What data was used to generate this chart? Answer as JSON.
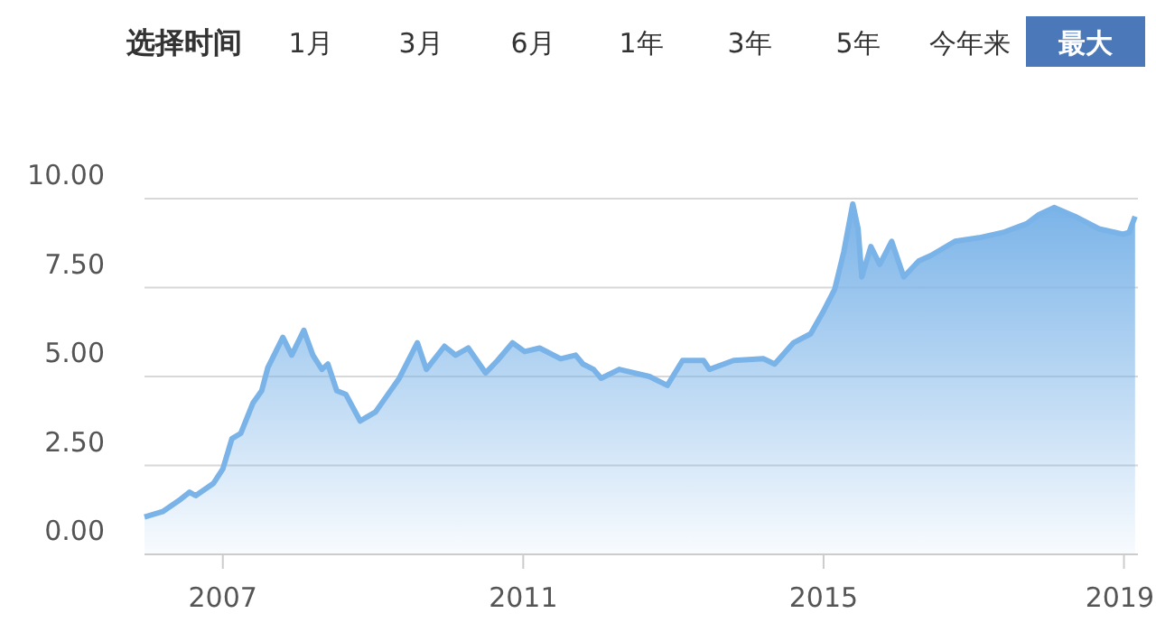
{
  "chart_data": {
    "type": "area",
    "title": "选择时间",
    "annotations": [
      "1月",
      "3月",
      "6月",
      "1年",
      "3年",
      "5年",
      "今年来",
      "最大"
    ],
    "x": [
      "2005-12-16",
      "2006-03-14",
      "2006-06-10",
      "2006-07-23",
      "2006-08-22",
      "2006-11-17",
      "2007-01-01",
      "2007-02-14",
      "2007-03-29",
      "2007-05-27",
      "2007-07-09",
      "2007-08-08",
      "2007-10-20",
      "2007-12-02",
      "2008-01-30",
      "2008-03-14",
      "2008-04-27",
      "2008-05-26",
      "2008-07-08",
      "2008-08-21",
      "2008-10-30",
      "2008-11-28",
      "2009-01-12",
      "2009-02-24",
      "2009-05-08",
      "2009-08-04",
      "2009-09-17",
      "2009-12-14",
      "2010-02-06",
      "2010-04-09",
      "2010-07-02",
      "2010-08-29",
      "2010-11-10",
      "2011-01-08",
      "2011-03-22",
      "2011-07-02",
      "2011-09-13",
      "2011-10-19",
      "2011-12-09",
      "2012-01-15",
      "2012-04-12",
      "2012-09-06",
      "2012-12-02",
      "2013-02-14",
      "2013-05-27",
      "2013-06-25",
      "2013-10-20",
      "2014-03-14",
      "2014-05-08",
      "2014-08-08",
      "2014-10-30",
      "2014-12-28",
      "2015-02-24",
      "2015-04-09",
      "2015-05-23",
      "2015-06-18",
      "2015-07-06",
      "2015-08-19",
      "2015-10-01",
      "2015-11-28",
      "2016-01-26",
      "2016-04-08",
      "2016-06-06",
      "2016-10-01",
      "2017-01-26",
      "2017-05-23",
      "2017-09-16",
      "2017-11-13",
      "2018-01-26",
      "2018-05-08",
      "2018-09-02",
      "2018-12-28",
      "2019-01-26",
      "2019-02-24"
    ],
    "series": [
      {
        "color": "#7ab3e8",
        "values": [
          1.05,
          1.2,
          1.55,
          1.75,
          1.65,
          2.0,
          2.4,
          3.25,
          3.4,
          4.25,
          4.6,
          5.25,
          6.1,
          5.6,
          6.3,
          5.6,
          5.2,
          5.35,
          4.6,
          4.5,
          3.75,
          3.85,
          4.0,
          4.35,
          4.95,
          5.95,
          5.2,
          5.85,
          5.6,
          5.8,
          5.1,
          5.45,
          5.95,
          5.7,
          5.8,
          5.5,
          5.6,
          5.35,
          5.2,
          4.95,
          5.2,
          5.0,
          4.75,
          5.45,
          5.45,
          5.2,
          5.45,
          5.5,
          5.35,
          5.95,
          6.2,
          6.8,
          7.45,
          8.5,
          9.85,
          9.15,
          7.8,
          8.65,
          8.15,
          8.8,
          7.8,
          8.25,
          8.4,
          8.8,
          8.9,
          9.05,
          9.3,
          9.55,
          9.75,
          9.5,
          9.15,
          9.0,
          9.05,
          9.5
        ]
      }
    ],
    "xlim": [
      "2005-12-16",
      "2019-03-10"
    ],
    "xticks": [
      {
        "value": "2007-01-01",
        "label": "2007"
      },
      {
        "value": "2011-01-01",
        "label": "2011"
      },
      {
        "value": "2015-01-01",
        "label": "2015"
      },
      {
        "value": "2019-01-01",
        "label": "2019"
      }
    ],
    "ylim": [
      0,
      10
    ],
    "yticks": [
      {
        "value": 0,
        "label": "0.00"
      },
      {
        "value": 2.5,
        "label": "2.50"
      },
      {
        "value": 5,
        "label": "5.00"
      },
      {
        "value": 7.5,
        "label": "7.50"
      },
      {
        "value": 10,
        "label": "10.00"
      }
    ],
    "grid": "y"
  }
}
